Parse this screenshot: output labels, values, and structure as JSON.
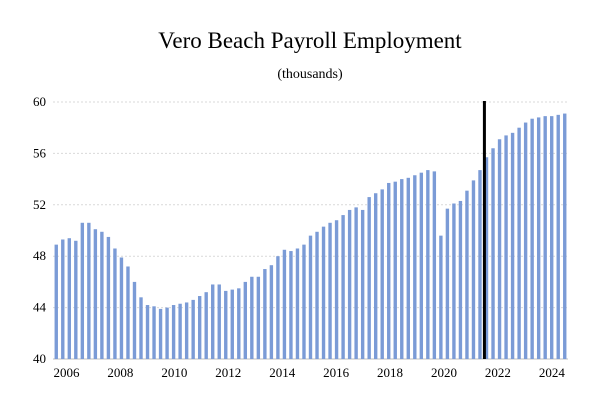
{
  "chart_data": {
    "type": "bar",
    "title": "Vero Beach Payroll Employment",
    "subtitle": "(thousands)",
    "ylim": [
      40,
      60
    ],
    "yticks": [
      "40",
      "44",
      "48",
      "52",
      "56",
      "60"
    ],
    "xticks": [
      "2006",
      "2008",
      "2010",
      "2012",
      "2014",
      "2016",
      "2018",
      "2020",
      "2022",
      "2024"
    ],
    "x_start_year": 2005.5,
    "x_end_year": 2024.6,
    "vertical_marker_year": 2021.5,
    "grid": "horizontal dashed",
    "colors": {
      "bar": "#7b9bd6",
      "marker": "#000000"
    },
    "values": [
      48.9,
      49.3,
      49.4,
      49.2,
      50.6,
      50.6,
      50.1,
      49.9,
      49.5,
      48.6,
      47.9,
      47.2,
      46.0,
      44.8,
      44.2,
      44.1,
      43.9,
      44.0,
      44.2,
      44.3,
      44.4,
      44.6,
      44.9,
      45.2,
      45.8,
      45.8,
      45.3,
      45.4,
      45.5,
      46.0,
      46.4,
      46.4,
      47.0,
      47.3,
      48.0,
      48.5,
      48.4,
      48.6,
      48.9,
      49.6,
      49.9,
      50.3,
      50.6,
      50.8,
      51.2,
      51.6,
      51.8,
      51.6,
      52.6,
      52.9,
      53.2,
      53.7,
      53.8,
      54.0,
      54.1,
      54.3,
      54.5,
      54.7,
      54.6,
      49.6,
      51.7,
      52.1,
      52.3,
      53.1,
      53.9,
      54.7,
      55.7,
      56.4,
      57.1,
      57.4,
      57.6,
      58.0,
      58.4,
      58.7,
      58.8,
      58.9,
      58.9,
      59.0,
      59.1
    ]
  }
}
